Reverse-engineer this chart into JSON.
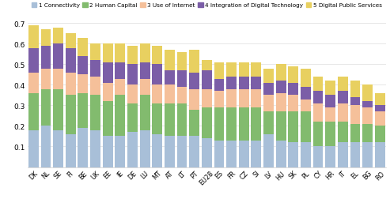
{
  "countries": [
    "DK",
    "NL",
    "SE",
    "FI",
    "BE",
    "UK",
    "EE",
    "IE",
    "DE",
    "LU",
    "MT",
    "AT",
    "LT",
    "PT",
    "EU28",
    "ES",
    "FR",
    "CZ",
    "SI",
    "LV",
    "HU",
    "SK",
    "PL",
    "CY",
    "HR",
    "IT",
    "EL",
    "BG",
    "RO"
  ],
  "connectivity": [
    0.18,
    0.2,
    0.18,
    0.16,
    0.19,
    0.18,
    0.15,
    0.15,
    0.17,
    0.18,
    0.16,
    0.15,
    0.15,
    0.15,
    0.14,
    0.13,
    0.13,
    0.13,
    0.13,
    0.16,
    0.13,
    0.12,
    0.12,
    0.1,
    0.1,
    0.12,
    0.12,
    0.12,
    0.12
  ],
  "human_capital": [
    0.18,
    0.18,
    0.2,
    0.19,
    0.17,
    0.17,
    0.17,
    0.2,
    0.14,
    0.17,
    0.15,
    0.16,
    0.16,
    0.13,
    0.15,
    0.16,
    0.16,
    0.16,
    0.16,
    0.11,
    0.14,
    0.15,
    0.15,
    0.12,
    0.12,
    0.1,
    0.09,
    0.09,
    0.08
  ],
  "use_internet": [
    0.1,
    0.1,
    0.1,
    0.11,
    0.09,
    0.09,
    0.09,
    0.08,
    0.09,
    0.08,
    0.09,
    0.09,
    0.08,
    0.1,
    0.09,
    0.08,
    0.09,
    0.09,
    0.09,
    0.08,
    0.09,
    0.08,
    0.06,
    0.09,
    0.07,
    0.09,
    0.09,
    0.08,
    0.07
  ],
  "integration": [
    0.12,
    0.11,
    0.12,
    0.12,
    0.09,
    0.08,
    0.1,
    0.08,
    0.1,
    0.08,
    0.1,
    0.07,
    0.08,
    0.08,
    0.09,
    0.06,
    0.06,
    0.06,
    0.06,
    0.06,
    0.06,
    0.06,
    0.06,
    0.06,
    0.06,
    0.06,
    0.04,
    0.03,
    0.03
  ],
  "digital_public": [
    0.11,
    0.08,
    0.08,
    0.07,
    0.09,
    0.08,
    0.09,
    0.09,
    0.09,
    0.09,
    0.09,
    0.1,
    0.09,
    0.11,
    0.05,
    0.08,
    0.07,
    0.07,
    0.07,
    0.07,
    0.08,
    0.08,
    0.09,
    0.07,
    0.07,
    0.07,
    0.08,
    0.08,
    0.06
  ],
  "colors": {
    "connectivity": "#A8BFD8",
    "human_capital": "#82BB6E",
    "use_internet": "#F5C09A",
    "integration": "#7B5EA7",
    "digital_public": "#E8D060"
  },
  "legend_labels": [
    "1 Connectivity",
    "2 Human Capital",
    "3 Use of Internet",
    "4 Integration of Digital Technology",
    "5 Digital Public Services"
  ],
  "ylim": [
    0,
    0.7
  ],
  "yticks": [
    0,
    0.1,
    0.2,
    0.3,
    0.4,
    0.5,
    0.6,
    0.7
  ],
  "figsize": [
    4.93,
    2.53
  ],
  "dpi": 100
}
